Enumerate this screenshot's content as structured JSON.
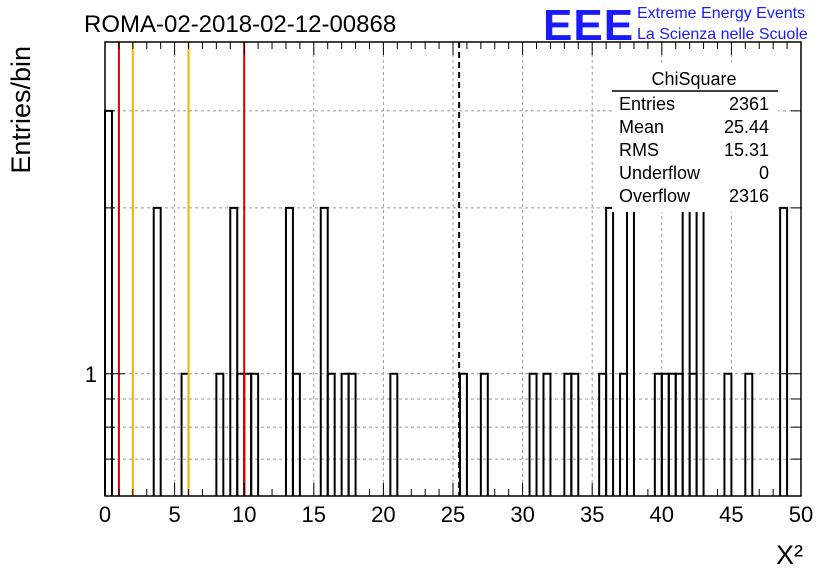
{
  "chart_data": {
    "type": "bar",
    "title": "ROMA-02-2018-02-12-00868",
    "xlabel": "X²",
    "ylabel": "Entries/bin",
    "xlim": [
      0,
      50
    ],
    "ylog": true,
    "ylim": [
      0.6,
      4.0
    ],
    "grid": true,
    "bin_width": 0.5,
    "x_ticks": [
      "0",
      "5",
      "10",
      "15",
      "20",
      "25",
      "30",
      "35",
      "40",
      "45",
      "50"
    ],
    "y_ticks": [
      "1"
    ],
    "bins": [
      {
        "x": 0.0,
        "value": 3
      },
      {
        "x": 3.5,
        "value": 2
      },
      {
        "x": 5.5,
        "value": 1
      },
      {
        "x": 8.0,
        "value": 1
      },
      {
        "x": 9.0,
        "value": 2
      },
      {
        "x": 9.5,
        "value": 1
      },
      {
        "x": 10.0,
        "value": 1
      },
      {
        "x": 10.5,
        "value": 1
      },
      {
        "x": 13.0,
        "value": 2
      },
      {
        "x": 13.5,
        "value": 1
      },
      {
        "x": 15.5,
        "value": 2
      },
      {
        "x": 16.0,
        "value": 1
      },
      {
        "x": 17.0,
        "value": 1
      },
      {
        "x": 17.5,
        "value": 1
      },
      {
        "x": 20.5,
        "value": 1
      },
      {
        "x": 25.5,
        "value": 1
      },
      {
        "x": 27.0,
        "value": 1
      },
      {
        "x": 30.5,
        "value": 1
      },
      {
        "x": 31.5,
        "value": 1
      },
      {
        "x": 33.0,
        "value": 1
      },
      {
        "x": 33.5,
        "value": 1
      },
      {
        "x": 35.5,
        "value": 1
      },
      {
        "x": 36.0,
        "value": 2
      },
      {
        "x": 37.0,
        "value": 1
      },
      {
        "x": 37.5,
        "value": 2
      },
      {
        "x": 39.5,
        "value": 1
      },
      {
        "x": 40.0,
        "value": 1
      },
      {
        "x": 40.5,
        "value": 1
      },
      {
        "x": 41.0,
        "value": 1
      },
      {
        "x": 41.5,
        "value": 2
      },
      {
        "x": 42.0,
        "value": 1
      },
      {
        "x": 42.5,
        "value": 2
      },
      {
        "x": 44.5,
        "value": 1
      },
      {
        "x": 46.0,
        "value": 1
      },
      {
        "x": 48.5,
        "value": 2
      }
    ],
    "markers": [
      {
        "x": 1.0,
        "color": "#dd0000",
        "style": "solid"
      },
      {
        "x": 2.0,
        "color": "#f0b400",
        "style": "solid"
      },
      {
        "x": 6.0,
        "color": "#f0b400",
        "style": "solid"
      },
      {
        "x": 10.0,
        "color": "#dd0000",
        "style": "solid"
      },
      {
        "x": 25.44,
        "color": "#000000",
        "style": "dashed"
      }
    ]
  },
  "stats_box": {
    "title": "ChiSquare",
    "rows": [
      {
        "label": "Entries",
        "value": "2361"
      },
      {
        "label": "Mean",
        "value": "25.44"
      },
      {
        "label": "RMS",
        "value": "15.31"
      },
      {
        "label": "Underflow",
        "value": "0"
      },
      {
        "label": "Overflow",
        "value": "2316"
      }
    ]
  },
  "logo": {
    "mark": "EEE",
    "line1": "Extreme Energy Events",
    "line2": "La Scienza nelle Scuole",
    "color": "#1a1aff"
  }
}
